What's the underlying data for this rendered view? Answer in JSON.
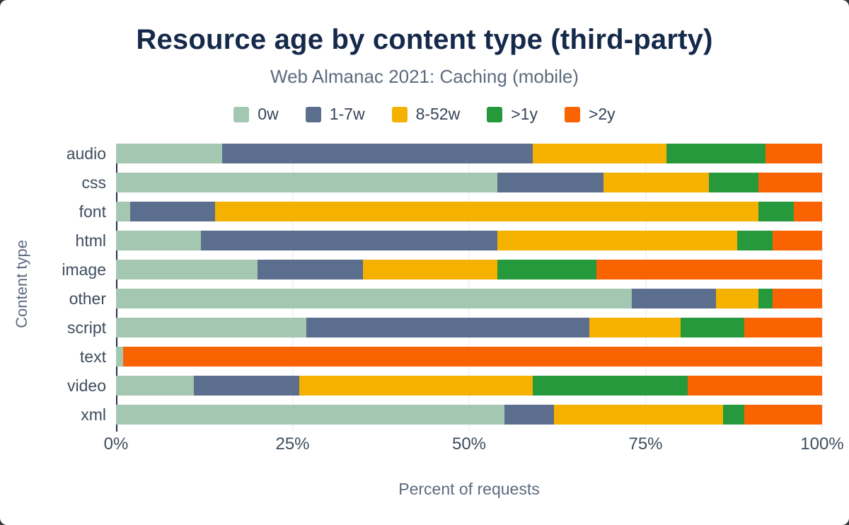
{
  "chart_data": {
    "type": "bar",
    "orientation": "horizontal",
    "stacked": true,
    "title": "Resource age by content type (third-party)",
    "subtitle": "Web Almanac 2021: Caching (mobile)",
    "xlabel": "Percent of requests",
    "ylabel": "Content type",
    "xlim": [
      0,
      100
    ],
    "x_ticks": [
      "0%",
      "25%",
      "50%",
      "75%",
      "100%"
    ],
    "gridline_positions": [
      25,
      50,
      75,
      100
    ],
    "grid": true,
    "legend_position": "top",
    "categories": [
      "audio",
      "css",
      "font",
      "html",
      "image",
      "other",
      "script",
      "text",
      "video",
      "xml"
    ],
    "series": [
      {
        "name": "0w",
        "color": "#a4c7b2",
        "values": [
          15,
          54,
          2,
          12,
          20,
          73,
          27,
          1,
          11,
          55
        ]
      },
      {
        "name": "1-7w",
        "color": "#5b6e8e",
        "values": [
          44,
          15,
          12,
          42,
          15,
          12,
          40,
          0,
          15,
          7
        ]
      },
      {
        "name": "8-52w",
        "color": "#f5b100",
        "values": [
          19,
          15,
          77,
          34,
          19,
          6,
          13,
          0,
          33,
          24
        ]
      },
      {
        "name": ">1y",
        "color": "#27993d",
        "values": [
          14,
          7,
          5,
          5,
          14,
          2,
          9,
          0,
          22,
          3
        ]
      },
      {
        "name": ">2y",
        "color": "#f96302",
        "values": [
          8,
          9,
          4,
          7,
          32,
          7,
          11,
          99,
          19,
          11
        ]
      }
    ]
  }
}
